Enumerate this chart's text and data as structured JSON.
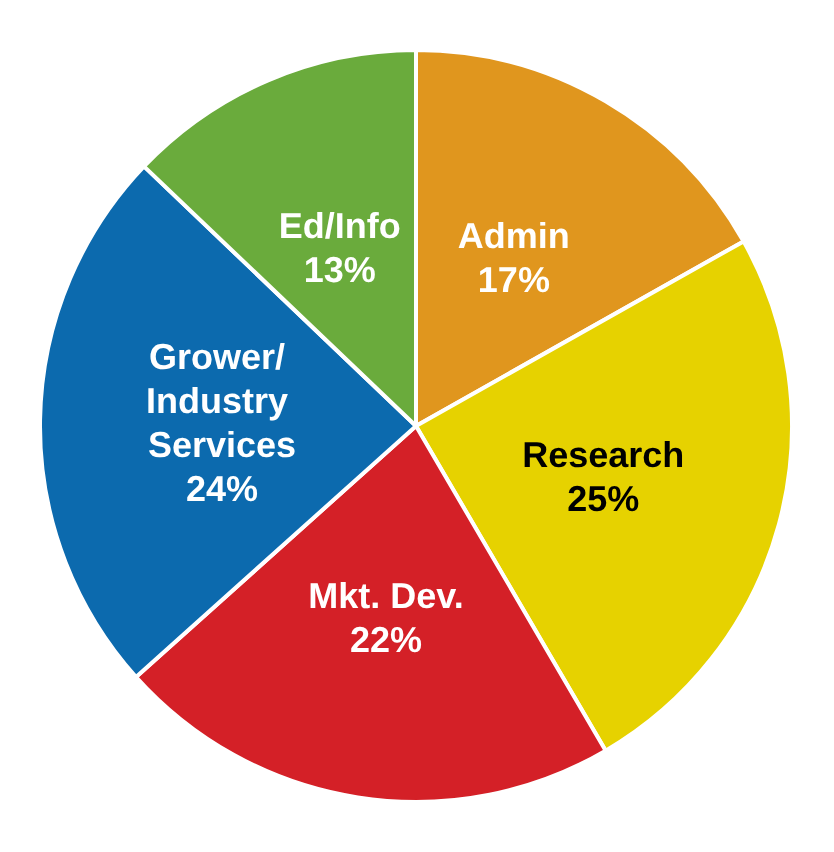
{
  "chart_data": {
    "type": "pie",
    "categories": [
      "Admin",
      "Research",
      "Mkt. Dev.",
      "Grower/ Industry Services",
      "Ed/Info"
    ],
    "values": [
      17,
      25,
      22,
      24,
      13
    ],
    "colors": [
      "#e0961e",
      "#e6d200",
      "#d42027",
      "#0c6aae",
      "#6aab3c"
    ],
    "value_labels": [
      "17%",
      "25%",
      "22%",
      "24%",
      "13%"
    ],
    "legend": false
  }
}
